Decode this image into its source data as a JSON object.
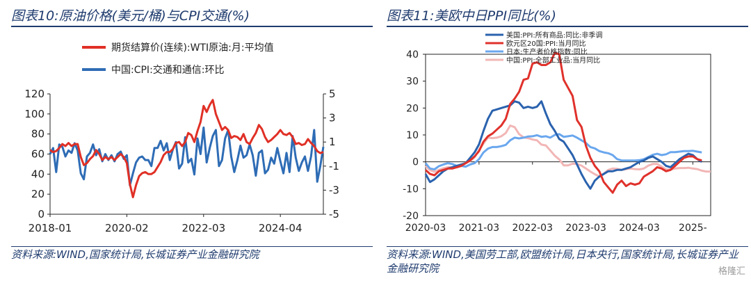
{
  "left": {
    "title": "图表10:原油价格(美元/桶)与CPI交通(%)",
    "source": "资料来源:WIND,国家统计局,长城证券产业金融研究院",
    "chart_data": {
      "type": "line",
      "legend_position": "top",
      "x_ticks": [
        "2018-01",
        "2020-02",
        "2022-03",
        "2024-04"
      ],
      "y_left": {
        "ticks": [
          0,
          20,
          40,
          60,
          80,
          100,
          120
        ],
        "ylim": [
          0,
          120
        ]
      },
      "y_right": {
        "ticks": [
          5,
          3,
          1,
          -1,
          -3,
          -5
        ],
        "ylim": [
          -5,
          5
        ]
      },
      "series": [
        {
          "name": "期货结算价(连续):WTI原油:月:平均值",
          "color": "#e03026",
          "axis": "left",
          "x": [
            "2018-01",
            "2018-02",
            "2018-03",
            "2018-04",
            "2018-05",
            "2018-06",
            "2018-07",
            "2018-08",
            "2018-09",
            "2018-10",
            "2018-11",
            "2018-12",
            "2019-01",
            "2019-02",
            "2019-03",
            "2019-04",
            "2019-05",
            "2019-06",
            "2019-07",
            "2019-08",
            "2019-09",
            "2019-10",
            "2019-11",
            "2019-12",
            "2020-01",
            "2020-02",
            "2020-03",
            "2020-04",
            "2020-05",
            "2020-06",
            "2020-07",
            "2020-08",
            "2020-09",
            "2020-10",
            "2020-11",
            "2020-12",
            "2021-01",
            "2021-02",
            "2021-03",
            "2021-04",
            "2021-05",
            "2021-06",
            "2021-07",
            "2021-08",
            "2021-09",
            "2021-10",
            "2021-11",
            "2021-12",
            "2022-01",
            "2022-02",
            "2022-03",
            "2022-04",
            "2022-05",
            "2022-06",
            "2022-07",
            "2022-08",
            "2022-09",
            "2022-10",
            "2022-11",
            "2022-12",
            "2023-01",
            "2023-02",
            "2023-03",
            "2023-04",
            "2023-05",
            "2023-06",
            "2023-07",
            "2023-08",
            "2023-09",
            "2023-10",
            "2023-11",
            "2023-12",
            "2024-01",
            "2024-02",
            "2024-03",
            "2024-04",
            "2024-05",
            "2024-06",
            "2024-07",
            "2024-08",
            "2024-09",
            "2024-10",
            "2024-11",
            "2024-12",
            "2025-01",
            "2025-02",
            "2025-03",
            "2025-04",
            "2025-05",
            "2025-06"
          ],
          "y": [
            64,
            62,
            63,
            66,
            70,
            68,
            71,
            68,
            70,
            70,
            57,
            49,
            51,
            55,
            58,
            64,
            60,
            54,
            57,
            55,
            57,
            54,
            57,
            60,
            57,
            51,
            30,
            17,
            29,
            38,
            41,
            42,
            40,
            40,
            42,
            47,
            52,
            59,
            62,
            62,
            65,
            71,
            72,
            68,
            72,
            81,
            79,
            72,
            83,
            92,
            108,
            102,
            109,
            114,
            100,
            92,
            84,
            87,
            84,
            76,
            78,
            77,
            74,
            80,
            72,
            70,
            76,
            81,
            89,
            85,
            77,
            72,
            74,
            77,
            80,
            84,
            80,
            79,
            81,
            77,
            70,
            71,
            69,
            70,
            75,
            71,
            68,
            63,
            61,
            62
          ]
        },
        {
          "name": "中国:CPI:交通和通信:环比",
          "color": "#2e6cb5",
          "axis": "right",
          "x": [
            "2018-01",
            "2018-02",
            "2018-03",
            "2018-04",
            "2018-05",
            "2018-06",
            "2018-07",
            "2018-08",
            "2018-09",
            "2018-10",
            "2018-11",
            "2018-12",
            "2019-01",
            "2019-02",
            "2019-03",
            "2019-04",
            "2019-05",
            "2019-06",
            "2019-07",
            "2019-08",
            "2019-09",
            "2019-10",
            "2019-11",
            "2019-12",
            "2020-01",
            "2020-02",
            "2020-03",
            "2020-04",
            "2020-05",
            "2020-06",
            "2020-07",
            "2020-08",
            "2020-09",
            "2020-10",
            "2020-11",
            "2020-12",
            "2021-01",
            "2021-02",
            "2021-03",
            "2021-04",
            "2021-05",
            "2021-06",
            "2021-07",
            "2021-08",
            "2021-09",
            "2021-10",
            "2021-11",
            "2021-12",
            "2022-01",
            "2022-02",
            "2022-03",
            "2022-04",
            "2022-05",
            "2022-06",
            "2022-07",
            "2022-08",
            "2022-09",
            "2022-10",
            "2022-11",
            "2022-12",
            "2023-01",
            "2023-02",
            "2023-03",
            "2023-04",
            "2023-05",
            "2023-06",
            "2023-07",
            "2023-08",
            "2023-09",
            "2023-10",
            "2023-11",
            "2023-12",
            "2024-01",
            "2024-02",
            "2024-03",
            "2024-04",
            "2024-05",
            "2024-06",
            "2024-07",
            "2024-08",
            "2024-09",
            "2024-10",
            "2024-11",
            "2024-12",
            "2025-01",
            "2025-02",
            "2025-03",
            "2025-04",
            "2025-05",
            "2025-06"
          ],
          "y": [
            0.0,
            0.5,
            -1.5,
            0.8,
            0.6,
            -0.2,
            0.3,
            0.1,
            0.9,
            0.3,
            -1.6,
            -2.1,
            -0.2,
            0.1,
            0.8,
            -0.1,
            0.4,
            -0.6,
            0.0,
            -0.5,
            -0.1,
            -0.6,
            0.0,
            0.2,
            -0.4,
            -0.1,
            -2.6,
            -1.6,
            -0.7,
            -0.3,
            -0.2,
            -0.5,
            -0.5,
            -1.0,
            0.5,
            0.5,
            1.1,
            0.3,
            0.9,
            -0.5,
            0.4,
            1.0,
            -1.2,
            -0.8,
            1.4,
            -0.7,
            -0.4,
            -1.7,
            1.3,
            0.0,
            2.2,
            -0.7,
            0.5,
            1.5,
            2.0,
            -1.0,
            -0.5,
            1.3,
            2.0,
            -0.2,
            -1.5,
            -0.5,
            0.7,
            -0.3,
            -0.1,
            0.8,
            -0.1,
            -1.8,
            0.1,
            0.3,
            -1.6,
            -1.3,
            -0.3,
            -0.8,
            0.5,
            -0.6,
            -1.6,
            0.1,
            -1.5,
            1.5,
            -0.3,
            -1.4,
            -0.7,
            -0.2,
            -1.4,
            -0.2,
            2.0,
            -2.3,
            -1.0,
            0.6
          ]
        }
      ]
    }
  },
  "right": {
    "title": "图表11:美欧中日PPI同比(%)",
    "source": "资料来源:WIND,美国劳工部,欧盟统计局,日本央行,国家统计局,长城证券产业金融研究院",
    "watermark": "格隆汇",
    "chart_data": {
      "type": "line",
      "legend_position": "top-left",
      "x_ticks": [
        "2020-03",
        "2021-03",
        "2022-03",
        "2023-03",
        "2024-03",
        "2025-"
      ],
      "y": {
        "ticks": [
          40,
          30,
          20,
          10,
          0,
          -10,
          -20
        ],
        "ylim": [
          -20,
          40
        ]
      },
      "series": [
        {
          "name": "美国:PPI:所有商品:同比:非季调",
          "color": "#2a62ae",
          "x": [
            "2020-03",
            "2020-04",
            "2020-05",
            "2020-06",
            "2020-07",
            "2020-08",
            "2020-09",
            "2020-10",
            "2020-11",
            "2020-12",
            "2021-01",
            "2021-02",
            "2021-03",
            "2021-04",
            "2021-05",
            "2021-06",
            "2021-07",
            "2021-08",
            "2021-09",
            "2021-10",
            "2021-11",
            "2021-12",
            "2022-01",
            "2022-02",
            "2022-03",
            "2022-04",
            "2022-05",
            "2022-06",
            "2022-07",
            "2022-08",
            "2022-09",
            "2022-10",
            "2022-11",
            "2022-12",
            "2023-01",
            "2023-02",
            "2023-03",
            "2023-04",
            "2023-05",
            "2023-06",
            "2023-07",
            "2023-08",
            "2023-09",
            "2023-10",
            "2023-11",
            "2023-12",
            "2024-01",
            "2024-02",
            "2024-03",
            "2024-04",
            "2024-05",
            "2024-06",
            "2024-07",
            "2024-08",
            "2024-09",
            "2024-10",
            "2024-11",
            "2024-12",
            "2025-01",
            "2025-02",
            "2025-03",
            "2025-04",
            "2025-05"
          ],
          "y": [
            -4.5,
            -7.5,
            -6.5,
            -5.0,
            -3.5,
            -2.5,
            -2.0,
            -1.5,
            -1.0,
            -0.5,
            1.5,
            3.5,
            6.5,
            11.5,
            16.0,
            19.0,
            19.5,
            20.0,
            20.5,
            21.0,
            22.5,
            22.0,
            20.0,
            20.5,
            20.0,
            20.5,
            22.5,
            18.0,
            14.0,
            11.5,
            8.5,
            7.5,
            5.0,
            2.5,
            -1.0,
            -4.5,
            -7.5,
            -10.0,
            -7.0,
            -5.5,
            -4.5,
            -3.5,
            -3.5,
            -3.0,
            -3.0,
            -2.5,
            -2.0,
            -1.0,
            0.0,
            0.5,
            1.5,
            2.0,
            1.0,
            0.0,
            -1.5,
            -2.0,
            -0.5,
            1.0,
            2.0,
            3.0,
            2.5,
            1.0,
            0.0
          ]
        },
        {
          "name": "欧元区20国:PPI:当月同比",
          "color": "#e0312b",
          "x": [
            "2020-03",
            "2020-04",
            "2020-05",
            "2020-06",
            "2020-07",
            "2020-08",
            "2020-09",
            "2020-10",
            "2020-11",
            "2020-12",
            "2021-01",
            "2021-02",
            "2021-03",
            "2021-04",
            "2021-05",
            "2021-06",
            "2021-07",
            "2021-08",
            "2021-09",
            "2021-10",
            "2021-11",
            "2021-12",
            "2022-01",
            "2022-02",
            "2022-03",
            "2022-04",
            "2022-05",
            "2022-06",
            "2022-07",
            "2022-08",
            "2022-09",
            "2022-10",
            "2022-11",
            "2022-12",
            "2023-01",
            "2023-02",
            "2023-03",
            "2023-04",
            "2023-05",
            "2023-06",
            "2023-07",
            "2023-08",
            "2023-09",
            "2023-10",
            "2023-11",
            "2023-12",
            "2024-01",
            "2024-02",
            "2024-03",
            "2024-04",
            "2024-05",
            "2024-06",
            "2024-07",
            "2024-08",
            "2024-09",
            "2024-10",
            "2024-11",
            "2024-12",
            "2025-01",
            "2025-02",
            "2025-03",
            "2025-04",
            "2025-05"
          ],
          "y": [
            -3.0,
            -4.5,
            -5.0,
            -3.5,
            -3.0,
            -2.5,
            -2.5,
            -2.0,
            -1.5,
            -0.5,
            0.5,
            2.0,
            4.0,
            7.5,
            9.5,
            10.5,
            12.0,
            13.5,
            16.0,
            21.5,
            23.5,
            26.0,
            30.5,
            31.0,
            36.5,
            37.0,
            36.0,
            36.0,
            37.0,
            40.5,
            40.0,
            30.5,
            27.5,
            24.5,
            15.5,
            13.0,
            6.0,
            1.5,
            -1.5,
            -3.5,
            -7.5,
            -9.5,
            -11.5,
            -8.5,
            -7.0,
            -9.0,
            -8.0,
            -8.5,
            -8.0,
            -5.5,
            -4.5,
            -3.5,
            -2.0,
            -2.5,
            -3.5,
            -3.0,
            -1.5,
            0.0,
            1.5,
            2.0,
            2.0,
            1.0,
            0.5
          ]
        },
        {
          "name": "日本:生产者价格指数:同比",
          "color": "#6aa7ee",
          "x": [
            "2020-03",
            "2020-04",
            "2020-05",
            "2020-06",
            "2020-07",
            "2020-08",
            "2020-09",
            "2020-10",
            "2020-11",
            "2020-12",
            "2021-01",
            "2021-02",
            "2021-03",
            "2021-04",
            "2021-05",
            "2021-06",
            "2021-07",
            "2021-08",
            "2021-09",
            "2021-10",
            "2021-11",
            "2021-12",
            "2022-01",
            "2022-02",
            "2022-03",
            "2022-04",
            "2022-05",
            "2022-06",
            "2022-07",
            "2022-08",
            "2022-09",
            "2022-10",
            "2022-11",
            "2022-12",
            "2023-01",
            "2023-02",
            "2023-03",
            "2023-04",
            "2023-05",
            "2023-06",
            "2023-07",
            "2023-08",
            "2023-09",
            "2023-10",
            "2023-11",
            "2023-12",
            "2024-01",
            "2024-02",
            "2024-03",
            "2024-04",
            "2024-05",
            "2024-06",
            "2024-07",
            "2024-08",
            "2024-09",
            "2024-10",
            "2024-11",
            "2024-12",
            "2025-01",
            "2025-02",
            "2025-03",
            "2025-04",
            "2025-05"
          ],
          "y": [
            -0.5,
            -2.5,
            -2.8,
            -1.6,
            -1.0,
            -0.5,
            -0.8,
            -1.5,
            -1.5,
            -1.8,
            -1.0,
            -0.5,
            1.0,
            3.5,
            4.9,
            5.5,
            5.5,
            5.8,
            6.3,
            8.0,
            9.0,
            8.7,
            9.0,
            9.4,
            9.5,
            9.9,
            9.3,
            9.5,
            9.0,
            10.0,
            10.3,
            9.3,
            9.5,
            9.8,
            9.0,
            8.0,
            7.0,
            5.5,
            5.0,
            4.0,
            3.5,
            3.2,
            2.5,
            1.0,
            0.5,
            0.5,
            0.5,
            0.5,
            0.6,
            1.0,
            1.8,
            2.6,
            3.0,
            2.5,
            2.8,
            3.6,
            3.6,
            3.8,
            4.0,
            4.0,
            4.1,
            3.8,
            3.5
          ]
        },
        {
          "name": "中国:PPI:全部工业品:当月同比",
          "color": "#f2b6b6",
          "x": [
            "2020-03",
            "2020-04",
            "2020-05",
            "2020-06",
            "2020-07",
            "2020-08",
            "2020-09",
            "2020-10",
            "2020-11",
            "2020-12",
            "2021-01",
            "2021-02",
            "2021-03",
            "2021-04",
            "2021-05",
            "2021-06",
            "2021-07",
            "2021-08",
            "2021-09",
            "2021-10",
            "2021-11",
            "2021-12",
            "2022-01",
            "2022-02",
            "2022-03",
            "2022-04",
            "2022-05",
            "2022-06",
            "2022-07",
            "2022-08",
            "2022-09",
            "2022-10",
            "2022-11",
            "2022-12",
            "2023-01",
            "2023-02",
            "2023-03",
            "2023-04",
            "2023-05",
            "2023-06",
            "2023-07",
            "2023-08",
            "2023-09",
            "2023-10",
            "2023-11",
            "2023-12",
            "2024-01",
            "2024-02",
            "2024-03",
            "2024-04",
            "2024-05",
            "2024-06",
            "2024-07",
            "2024-08",
            "2024-09",
            "2024-10",
            "2024-11",
            "2024-12",
            "2025-01",
            "2025-02",
            "2025-03",
            "2025-04",
            "2025-05",
            "2025-06",
            "2025-07"
          ],
          "y": [
            -1.5,
            -3.1,
            -3.7,
            -3.0,
            -2.4,
            -2.0,
            -2.1,
            -2.1,
            -1.5,
            -0.4,
            0.3,
            1.7,
            4.4,
            6.8,
            9.0,
            8.8,
            9.0,
            9.5,
            10.7,
            13.5,
            12.9,
            10.3,
            9.1,
            8.8,
            8.3,
            8.0,
            6.4,
            6.1,
            4.2,
            2.3,
            0.9,
            -1.3,
            -1.3,
            -0.7,
            -0.8,
            -1.4,
            -2.5,
            -3.6,
            -4.6,
            -5.4,
            -4.4,
            -3.0,
            -2.5,
            -2.6,
            -3.0,
            -2.7,
            -2.5,
            -2.7,
            -2.8,
            -2.5,
            -1.4,
            -0.8,
            -0.8,
            -1.8,
            -2.8,
            -2.9,
            -2.5,
            -2.3,
            -2.3,
            -2.2,
            -2.5,
            -2.7,
            -3.3,
            -3.6,
            -3.6
          ]
        }
      ]
    }
  }
}
